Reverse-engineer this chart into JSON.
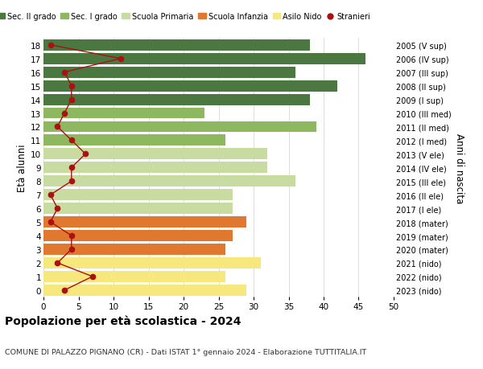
{
  "ages": [
    0,
    1,
    2,
    3,
    4,
    5,
    6,
    7,
    8,
    9,
    10,
    11,
    12,
    13,
    14,
    15,
    16,
    17,
    18
  ],
  "right_labels": [
    "2023 (nido)",
    "2022 (nido)",
    "2021 (nido)",
    "2020 (mater)",
    "2019 (mater)",
    "2018 (mater)",
    "2017 (I ele)",
    "2016 (II ele)",
    "2015 (III ele)",
    "2014 (IV ele)",
    "2013 (V ele)",
    "2012 (I med)",
    "2011 (II med)",
    "2010 (III med)",
    "2009 (I sup)",
    "2008 (II sup)",
    "2007 (III sup)",
    "2006 (IV sup)",
    "2005 (V sup)"
  ],
  "bar_values": [
    29,
    26,
    31,
    26,
    27,
    29,
    27,
    27,
    36,
    32,
    32,
    26,
    39,
    23,
    38,
    42,
    36,
    46,
    38
  ],
  "stranieri": [
    3,
    7,
    2,
    4,
    4,
    1,
    2,
    1,
    4,
    4,
    6,
    4,
    2,
    3,
    4,
    4,
    3,
    11,
    1
  ],
  "bar_colors": [
    "#f7e87e",
    "#f7e87e",
    "#f7e87e",
    "#e07830",
    "#e07830",
    "#e07830",
    "#c8dba0",
    "#c8dba0",
    "#c8dba0",
    "#c8dba0",
    "#c8dba0",
    "#8db860",
    "#8db860",
    "#8db860",
    "#4a7840",
    "#4a7840",
    "#4a7840",
    "#4a7840",
    "#4a7840"
  ],
  "legend_labels": [
    "Sec. II grado",
    "Sec. I grado",
    "Scuola Primaria",
    "Scuola Infanzia",
    "Asilo Nido",
    "Stranieri"
  ],
  "legend_colors": [
    "#4a7840",
    "#8db860",
    "#c8dba0",
    "#e07830",
    "#f7e87e",
    "#aa1111"
  ],
  "stranieri_color": "#aa1111",
  "stranieri_line_color": "#aa1111",
  "ylabel_left": "Età alunni",
  "ylabel_right": "Anni di nascita",
  "title": "Popolazione per età scolastica - 2024",
  "subtitle": "COMUNE DI PALAZZO PIGNANO (CR) - Dati ISTAT 1° gennaio 2024 - Elaborazione TUTTITALIA.IT",
  "xlim": [
    0,
    50
  ],
  "xticks": [
    0,
    5,
    10,
    15,
    20,
    25,
    30,
    35,
    40,
    45,
    50
  ],
  "bg_color": "#ffffff",
  "grid_color": "#dddddd"
}
